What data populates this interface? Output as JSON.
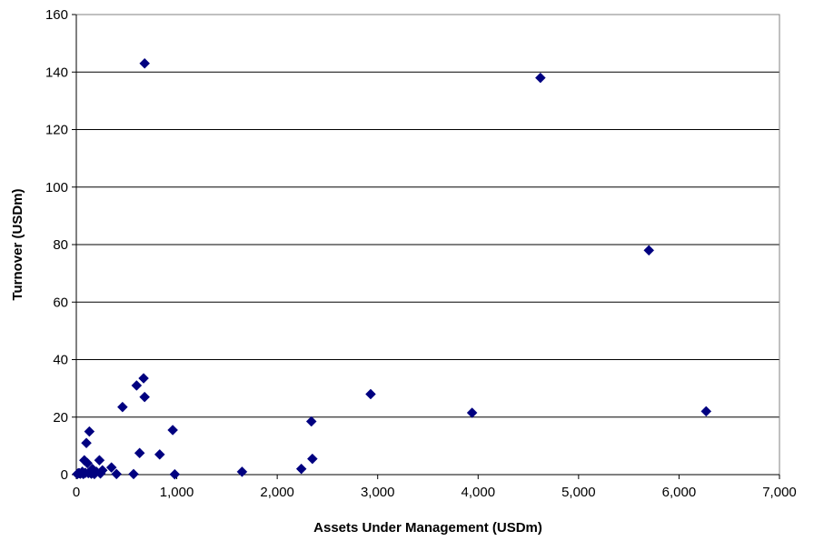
{
  "chart_data": {
    "type": "scatter",
    "title": "",
    "xlabel": "Assets Under Management (USDm)",
    "ylabel": "Turnover (USDm)",
    "xlim": [
      0,
      7000
    ],
    "ylim": [
      0,
      160
    ],
    "x_ticks": [
      0,
      1000,
      2000,
      3000,
      4000,
      5000,
      6000,
      7000
    ],
    "x_tick_labels": [
      "0",
      "1,000",
      "2,000",
      "3,000",
      "4,000",
      "5,000",
      "6,000",
      "7,000"
    ],
    "y_ticks": [
      0,
      20,
      40,
      60,
      80,
      100,
      120,
      140,
      160
    ],
    "y_tick_labels": [
      "0",
      "20",
      "40",
      "60",
      "80",
      "100",
      "120",
      "140",
      "160"
    ],
    "grid": "horizontal",
    "legend": "none",
    "marker": "diamond",
    "marker_color": "#000080",
    "series": [
      {
        "points": [
          {
            "x": 680,
            "y": 143
          },
          {
            "x": 4620,
            "y": 138
          },
          {
            "x": 5700,
            "y": 78
          },
          {
            "x": 670,
            "y": 33.5
          },
          {
            "x": 600,
            "y": 31
          },
          {
            "x": 2930,
            "y": 28
          },
          {
            "x": 680,
            "y": 27
          },
          {
            "x": 460,
            "y": 23.5
          },
          {
            "x": 6270,
            "y": 22
          },
          {
            "x": 3940,
            "y": 21.5
          },
          {
            "x": 2340,
            "y": 18.5
          },
          {
            "x": 960,
            "y": 15.5
          },
          {
            "x": 130,
            "y": 15
          },
          {
            "x": 100,
            "y": 11
          },
          {
            "x": 630,
            "y": 7.5
          },
          {
            "x": 830,
            "y": 7
          },
          {
            "x": 2350,
            "y": 5.5
          },
          {
            "x": 230,
            "y": 5
          },
          {
            "x": 80,
            "y": 5
          },
          {
            "x": 110,
            "y": 4
          },
          {
            "x": 350,
            "y": 2.5
          },
          {
            "x": 2240,
            "y": 2
          },
          {
            "x": 160,
            "y": 2
          },
          {
            "x": 260,
            "y": 1.5
          },
          {
            "x": 60,
            "y": 1
          },
          {
            "x": 1650,
            "y": 1
          },
          {
            "x": 200,
            "y": 1
          },
          {
            "x": 30,
            "y": 0.5
          },
          {
            "x": 10,
            "y": 0.2
          },
          {
            "x": 20,
            "y": 0.5
          },
          {
            "x": 40,
            "y": 0.3
          },
          {
            "x": 120,
            "y": 0.5
          },
          {
            "x": 150,
            "y": 0.3
          },
          {
            "x": 180,
            "y": 0.2
          },
          {
            "x": 240,
            "y": 0.4
          },
          {
            "x": 400,
            "y": 0.2
          },
          {
            "x": 570,
            "y": 0.2
          },
          {
            "x": 980,
            "y": 0.1
          },
          {
            "x": 70,
            "y": 0.2
          },
          {
            "x": 90,
            "y": 0.6
          }
        ]
      }
    ]
  }
}
